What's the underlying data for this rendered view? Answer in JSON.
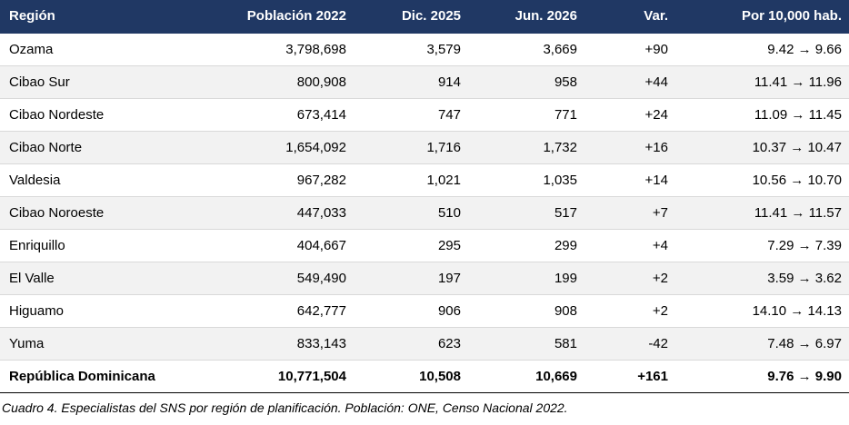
{
  "table": {
    "headers": [
      "Región",
      "Población 2022",
      "Dic. 2025",
      "Jun. 2026",
      "Var.",
      "Por 10,000 hab."
    ],
    "rows": [
      [
        "Ozama",
        "3,798,698",
        "3,579",
        "3,669",
        "+90",
        "9.42 → 9.66"
      ],
      [
        "Cibao Sur",
        "800,908",
        "914",
        "958",
        "+44",
        "11.41 → 11.96"
      ],
      [
        "Cibao Nordeste",
        "673,414",
        "747",
        "771",
        "+24",
        "11.09 → 11.45"
      ],
      [
        "Cibao Norte",
        "1,654,092",
        "1,716",
        "1,732",
        "+16",
        "10.37 → 10.47"
      ],
      [
        "Valdesia",
        "967,282",
        "1,021",
        "1,035",
        "+14",
        "10.56 → 10.70"
      ],
      [
        "Cibao Noroeste",
        "447,033",
        "510",
        "517",
        "+7",
        "11.41 → 11.57"
      ],
      [
        "Enriquillo",
        "404,667",
        "295",
        "299",
        "+4",
        "7.29 → 7.39"
      ],
      [
        "El Valle",
        "549,490",
        "197",
        "199",
        "+2",
        "3.59 → 3.62"
      ],
      [
        "Higuamo",
        "642,777",
        "906",
        "908",
        "+2",
        "14.10 → 14.13"
      ],
      [
        "Yuma",
        "833,143",
        "623",
        "581",
        "-42",
        "7.48 → 6.97"
      ]
    ],
    "total": [
      "República Dominicana",
      "10,771,504",
      "10,508",
      "10,669",
      "+161",
      "9.76 → 9.90"
    ]
  },
  "caption": "Cuadro 4. Especialistas del SNS por región de planificación. Población: ONE, Censo Nacional 2022.",
  "colors": {
    "header_bg": "#203864",
    "header_text": "#ffffff",
    "alt_row_bg": "#f2f2f2",
    "row_divider": "#d9d9d9"
  }
}
